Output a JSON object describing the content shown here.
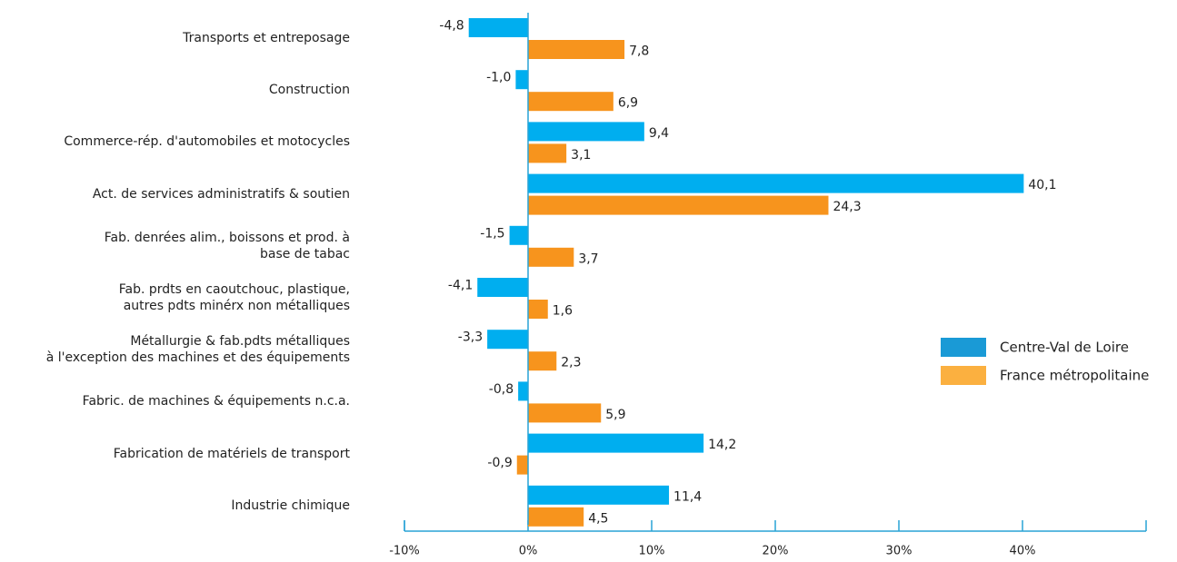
{
  "chart_data": {
    "type": "hbar",
    "categories": [
      "Transports et entreposage",
      "Construction",
      "Commerce-rép. d'automobiles et motocycles",
      "Act. de services administratifs & soutien",
      "Fab. denrées alim., boissons et prod. à\nbase de tabac",
      "Fab. prdts en caoutchouc, plastique,\nautres pdts minérx non métalliques",
      "Métallurgie & fab.pdts métalliques\nà l'exception des machines et des équipements",
      "Fabric. de machines & équipements n.c.a.",
      "Fabrication de matériels de transport",
      "Industrie chimique"
    ],
    "series": [
      {
        "name": "Centre-Val de Loire",
        "color": "#00aeef",
        "legend_color": "#1a9ad6",
        "values": [
          -4.8,
          -1.0,
          9.4,
          40.1,
          -1.5,
          -4.1,
          -3.3,
          -0.8,
          14.2,
          11.4
        ],
        "value_labels": [
          "-4,8",
          "-1,0",
          "9,4",
          "40,1",
          "-1,5",
          "-4,1",
          "-3,3",
          "-0,8",
          "14,2",
          "11,4"
        ]
      },
      {
        "name": "France métropolitaine",
        "color": "#f7941d",
        "legend_color": "#fbb040",
        "values": [
          7.8,
          6.9,
          3.1,
          24.3,
          3.7,
          1.6,
          2.3,
          5.9,
          -0.9,
          4.5
        ],
        "value_labels": [
          "7,8",
          "6,9",
          "3,1",
          "24,3",
          "3,7",
          "1,6",
          "2,3",
          "5,9",
          "-0,9",
          "4,5"
        ]
      }
    ],
    "xlim": [
      -10,
      50
    ],
    "xticks": [
      {
        "value": -10,
        "label": "-10%"
      },
      {
        "value": 0,
        "label": "0%"
      },
      {
        "value": 10,
        "label": "10%"
      },
      {
        "value": 20,
        "label": "20%"
      },
      {
        "value": 30,
        "label": "30%"
      },
      {
        "value": 40,
        "label": "40%"
      }
    ],
    "legend": "right"
  }
}
